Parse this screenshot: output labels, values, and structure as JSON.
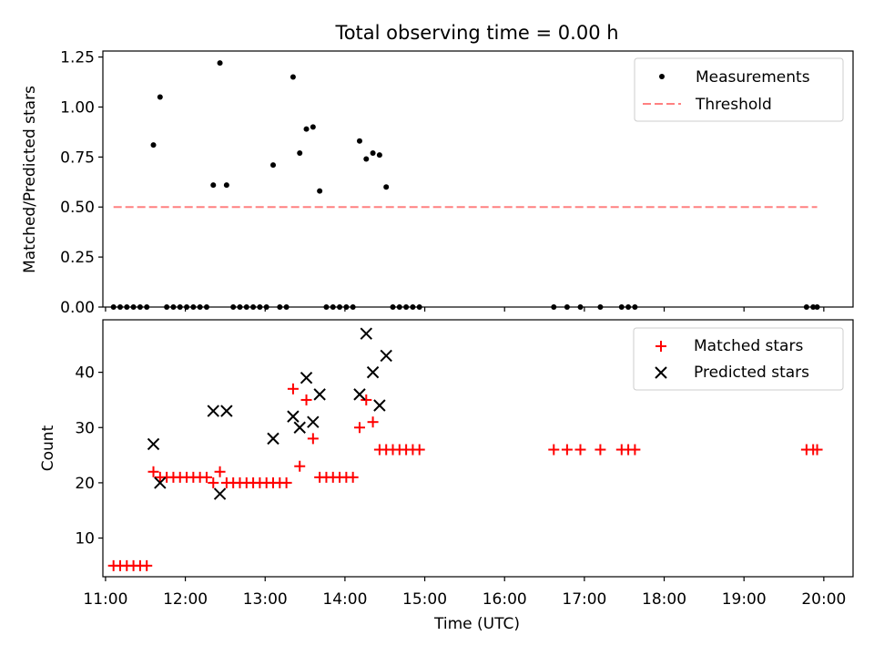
{
  "title": "Total observing time = 0.00 h",
  "chart_data": [
    {
      "type": "scatter",
      "ylabel": "Matched/Predicted stars",
      "xlabel": "",
      "xlim": [
        "10:58",
        "20:22"
      ],
      "ylim": [
        0,
        1.28
      ],
      "yticks": [
        "0.00",
        "0.25",
        "0.50",
        "0.75",
        "1.00",
        "1.25"
      ],
      "ytick_values": [
        0,
        0.25,
        0.5,
        0.75,
        1.0,
        1.25
      ],
      "legend": {
        "placement": "top-right",
        "entries": [
          "Measurements",
          "Threshold"
        ]
      },
      "series": [
        {
          "name": "Measurements",
          "marker": "dot",
          "color": "#000000",
          "points": [
            [
              "11:06",
              0
            ],
            [
              "11:11",
              0
            ],
            [
              "11:16",
              0
            ],
            [
              "11:21",
              0
            ],
            [
              "11:26",
              0
            ],
            [
              "11:31",
              0
            ],
            [
              "11:36",
              0.81
            ],
            [
              "11:41",
              1.05
            ],
            [
              "11:46",
              0
            ],
            [
              "11:51",
              0
            ],
            [
              "11:56",
              0
            ],
            [
              "12:01",
              0
            ],
            [
              "12:06",
              0
            ],
            [
              "12:11",
              0
            ],
            [
              "12:16",
              0
            ],
            [
              "12:21",
              0.61
            ],
            [
              "12:26",
              1.22
            ],
            [
              "12:31",
              0.61
            ],
            [
              "12:36",
              0
            ],
            [
              "12:41",
              0
            ],
            [
              "12:46",
              0
            ],
            [
              "12:51",
              0
            ],
            [
              "12:56",
              0
            ],
            [
              "13:01",
              0
            ],
            [
              "13:06",
              0.71
            ],
            [
              "13:11",
              0
            ],
            [
              "13:16",
              0
            ],
            [
              "13:21",
              1.15
            ],
            [
              "13:26",
              0.77
            ],
            [
              "13:31",
              0.89
            ],
            [
              "13:36",
              0.9
            ],
            [
              "13:41",
              0.58
            ],
            [
              "13:46",
              0
            ],
            [
              "13:51",
              0
            ],
            [
              "13:56",
              0
            ],
            [
              "14:01",
              0
            ],
            [
              "14:06",
              0
            ],
            [
              "14:11",
              0.83
            ],
            [
              "14:16",
              0.74
            ],
            [
              "14:21",
              0.77
            ],
            [
              "14:26",
              0.76
            ],
            [
              "14:31",
              0.6
            ],
            [
              "14:36",
              0
            ],
            [
              "14:41",
              0
            ],
            [
              "14:46",
              0
            ],
            [
              "14:51",
              0
            ],
            [
              "14:56",
              0
            ],
            [
              "16:37",
              0
            ],
            [
              "16:47",
              0
            ],
            [
              "16:57",
              0
            ],
            [
              "17:12",
              0
            ],
            [
              "17:28",
              0
            ],
            [
              "17:33",
              0
            ],
            [
              "17:38",
              0
            ],
            [
              "19:47",
              0
            ],
            [
              "19:52",
              0
            ],
            [
              "19:55",
              0
            ]
          ]
        },
        {
          "name": "Threshold",
          "style": "dashed-line",
          "color": "#ff8080",
          "points": [
            [
              "11:06",
              0.5
            ],
            [
              "19:55",
              0.5
            ]
          ]
        }
      ]
    },
    {
      "type": "scatter",
      "ylabel": "Count",
      "xlabel": "Time (UTC)",
      "xlim": [
        "10:58",
        "20:22"
      ],
      "ylim": [
        3,
        49.5
      ],
      "yticks": [
        "10",
        "20",
        "30",
        "40"
      ],
      "ytick_values": [
        10,
        20,
        30,
        40
      ],
      "xticks": [
        "11:00",
        "12:00",
        "13:00",
        "14:00",
        "15:00",
        "16:00",
        "17:00",
        "18:00",
        "19:00",
        "20:00"
      ],
      "legend": {
        "placement": "top-right",
        "entries": [
          "Matched stars",
          "Predicted stars"
        ]
      },
      "series": [
        {
          "name": "Matched stars",
          "marker": "plus",
          "color": "#ff0000",
          "points": [
            [
              "11:06",
              5
            ],
            [
              "11:11",
              5
            ],
            [
              "11:16",
              5
            ],
            [
              "11:21",
              5
            ],
            [
              "11:26",
              5
            ],
            [
              "11:31",
              5
            ],
            [
              "11:36",
              22
            ],
            [
              "11:41",
              21
            ],
            [
              "11:46",
              21
            ],
            [
              "11:51",
              21
            ],
            [
              "11:56",
              21
            ],
            [
              "12:01",
              21
            ],
            [
              "12:06",
              21
            ],
            [
              "12:11",
              21
            ],
            [
              "12:16",
              21
            ],
            [
              "12:21",
              20
            ],
            [
              "12:26",
              22
            ],
            [
              "12:31",
              20
            ],
            [
              "12:36",
              20
            ],
            [
              "12:41",
              20
            ],
            [
              "12:46",
              20
            ],
            [
              "12:51",
              20
            ],
            [
              "12:56",
              20
            ],
            [
              "13:01",
              20
            ],
            [
              "13:06",
              20
            ],
            [
              "13:11",
              20
            ],
            [
              "13:16",
              20
            ],
            [
              "13:21",
              37
            ],
            [
              "13:26",
              23
            ],
            [
              "13:31",
              35
            ],
            [
              "13:36",
              28
            ],
            [
              "13:41",
              21
            ],
            [
              "13:46",
              21
            ],
            [
              "13:51",
              21
            ],
            [
              "13:56",
              21
            ],
            [
              "14:01",
              21
            ],
            [
              "14:06",
              21
            ],
            [
              "14:11",
              30
            ],
            [
              "14:16",
              35
            ],
            [
              "14:21",
              31
            ],
            [
              "14:26",
              26
            ],
            [
              "14:31",
              26
            ],
            [
              "14:36",
              26
            ],
            [
              "14:41",
              26
            ],
            [
              "14:46",
              26
            ],
            [
              "14:51",
              26
            ],
            [
              "14:56",
              26
            ],
            [
              "16:37",
              26
            ],
            [
              "16:47",
              26
            ],
            [
              "16:57",
              26
            ],
            [
              "17:12",
              26
            ],
            [
              "17:28",
              26
            ],
            [
              "17:33",
              26
            ],
            [
              "17:38",
              26
            ],
            [
              "19:47",
              26
            ],
            [
              "19:52",
              26
            ],
            [
              "19:55",
              26
            ]
          ]
        },
        {
          "name": "Predicted stars",
          "marker": "x",
          "color": "#000000",
          "points": [
            [
              "11:36",
              27
            ],
            [
              "11:41",
              20
            ],
            [
              "12:21",
              33
            ],
            [
              "12:26",
              18
            ],
            [
              "12:31",
              33
            ],
            [
              "13:06",
              28
            ],
            [
              "13:21",
              32
            ],
            [
              "13:26",
              30
            ],
            [
              "13:31",
              39
            ],
            [
              "13:36",
              31
            ],
            [
              "13:41",
              36
            ],
            [
              "14:11",
              36
            ],
            [
              "14:16",
              47
            ],
            [
              "14:21",
              40
            ],
            [
              "14:26",
              34
            ],
            [
              "14:31",
              43
            ]
          ]
        }
      ]
    }
  ]
}
